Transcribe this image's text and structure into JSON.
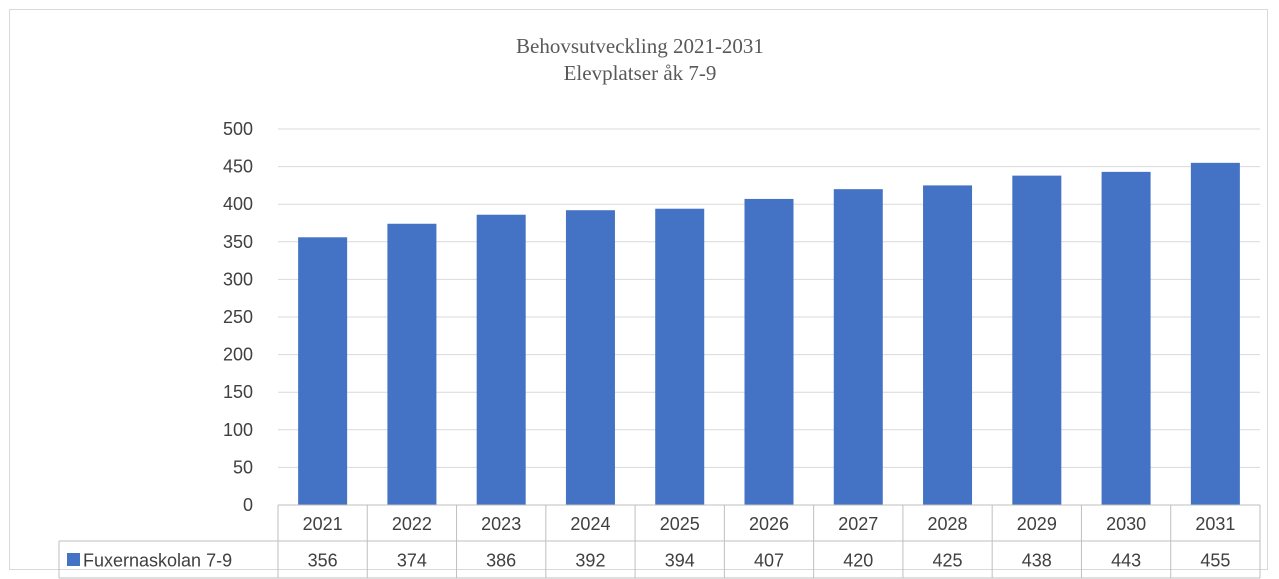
{
  "chart_data": {
    "type": "bar",
    "title_line1": "Behovsutveckling 2021-2031",
    "title_line2": "Elevplatser åk 7-9",
    "xlabel": "",
    "ylabel": "",
    "ylim": [
      0,
      500
    ],
    "y_ticks": [
      "0",
      "50",
      "100",
      "150",
      "200",
      "250",
      "300",
      "350",
      "400",
      "450",
      "500"
    ],
    "grid": true,
    "legend_placement": "data-table",
    "categories": [
      "2021",
      "2022",
      "2023",
      "2024",
      "2025",
      "2026",
      "2027",
      "2028",
      "2029",
      "2030",
      "2031"
    ],
    "series": [
      {
        "name": "Fuxernaskolan 7-9",
        "color": "#4472c4",
        "values": [
          356,
          374,
          386,
          392,
          394,
          407,
          420,
          425,
          438,
          443,
          455
        ],
        "value_labels": [
          "356",
          "374",
          "386",
          "392",
          "394",
          "407",
          "420",
          "425",
          "438",
          "443",
          "455"
        ]
      }
    ]
  }
}
